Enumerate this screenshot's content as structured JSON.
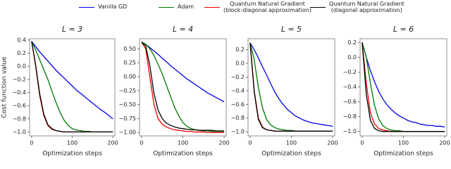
{
  "legend": [
    {
      "name": "Vanilla GD",
      "color": "#0000ee"
    },
    {
      "name": "Adam",
      "color": "#007700"
    },
    {
      "name": "Quantum Natural Gradient\n(block-diagonal approximation)",
      "color": "#ee0000"
    },
    {
      "name": "Quantum Natural Gradient\n(diagonal approximation)",
      "color": "#000000"
    }
  ],
  "chart_data": [
    {
      "type": "line",
      "title": "L = 3",
      "ylabel": "Cost function value",
      "xlabel": "Optimization steps",
      "x": [
        0,
        10,
        20,
        30,
        40,
        50,
        60,
        70,
        80,
        90,
        100,
        110,
        120,
        130,
        140,
        150,
        160,
        170,
        180,
        190,
        200
      ],
      "xlim": [
        -5,
        205
      ],
      "xticks": [
        0,
        100,
        200
      ],
      "ylim": [
        -1.06,
        0.42
      ],
      "yticks": [
        {
          "value": -1.0,
          "label": "−1.0"
        },
        {
          "value": -0.8,
          "label": "−0.8"
        },
        {
          "value": -0.6,
          "label": "−0.6"
        },
        {
          "value": -0.4,
          "label": "−0.4"
        },
        {
          "value": -0.2,
          "label": "−0.2"
        },
        {
          "value": 0.0,
          "label": "0.0"
        },
        0.2,
        0.4
      ],
      "series": [
        {
          "values": [
            0.38,
            0.3,
            0.22,
            0.15,
            0.08,
            0.01,
            -0.06,
            -0.12,
            -0.18,
            -0.24,
            -0.3,
            -0.36,
            -0.41,
            -0.46,
            -0.51,
            -0.56,
            -0.61,
            -0.66,
            -0.7,
            -0.75,
            -0.8
          ]
        },
        {
          "values": [
            0.38,
            0.25,
            0.1,
            -0.05,
            -0.2,
            -0.38,
            -0.55,
            -0.7,
            -0.82,
            -0.9,
            -0.95,
            -0.97,
            -0.98,
            -0.99,
            -0.99,
            -1.0,
            -1.0,
            -1.0,
            -1.0,
            -1.0,
            -1.0
          ]
        },
        {
          "values": [
            0.38,
            0.0,
            -0.45,
            -0.75,
            -0.9,
            -0.96,
            -0.98,
            -0.99,
            -1.0,
            -1.0,
            -1.0,
            -1.0,
            -1.0,
            -1.0,
            -1.0,
            -1.0,
            -1.0,
            -1.0,
            -1.0,
            -1.0,
            -1.0
          ]
        },
        {
          "values": [
            0.38,
            0.02,
            -0.42,
            -0.73,
            -0.89,
            -0.95,
            -0.98,
            -0.99,
            -1.0,
            -1.0,
            -1.0,
            -1.0,
            -1.0,
            -1.0,
            -1.0,
            -1.0,
            -1.0,
            -1.0,
            -1.0,
            -1.0,
            -1.0
          ]
        }
      ]
    },
    {
      "type": "line",
      "title": "L = 4",
      "xlabel": "Optimization steps",
      "x": [
        0,
        10,
        20,
        30,
        40,
        50,
        60,
        70,
        80,
        90,
        100,
        110,
        120,
        130,
        140,
        150,
        160,
        170,
        180,
        190,
        200
      ],
      "xlim": [
        -5,
        205
      ],
      "xticks": [
        0,
        100,
        200
      ],
      "ylim": [
        -1.06,
        0.68
      ],
      "yticks": [
        {
          "value": -1.0,
          "label": "−1.00"
        },
        {
          "value": -0.75,
          "label": "−0.75"
        },
        {
          "value": -0.5,
          "label": "−0.50"
        },
        {
          "value": -0.25,
          "label": "−0.25"
        },
        {
          "value": 0.0,
          "label": "0.00"
        },
        0.25,
        {
          "value": 0.5,
          "label": "0.50"
        }
      ],
      "series": [
        {
          "values": [
            0.62,
            0.58,
            0.52,
            0.46,
            0.4,
            0.33,
            0.27,
            0.2,
            0.14,
            0.08,
            0.02,
            -0.04,
            -0.09,
            -0.14,
            -0.19,
            -0.24,
            -0.29,
            -0.33,
            -0.37,
            -0.41,
            -0.45
          ]
        },
        {
          "values": [
            0.62,
            0.58,
            0.5,
            0.38,
            0.22,
            0.05,
            -0.15,
            -0.35,
            -0.55,
            -0.7,
            -0.82,
            -0.89,
            -0.93,
            -0.95,
            -0.96,
            -0.97,
            -0.97,
            -0.98,
            -0.98,
            -0.98,
            -0.98
          ]
        },
        {
          "values": [
            0.62,
            0.5,
            0.0,
            -0.5,
            -0.75,
            -0.85,
            -0.9,
            -0.93,
            -0.95,
            -0.96,
            -0.97,
            -0.98,
            -0.98,
            -0.99,
            -0.99,
            -0.99,
            -1.0,
            -1.0,
            -1.0,
            -1.0,
            -1.0
          ]
        },
        {
          "values": [
            0.62,
            0.55,
            0.2,
            -0.3,
            -0.6,
            -0.75,
            -0.83,
            -0.87,
            -0.9,
            -0.92,
            -0.93,
            -0.94,
            -0.95,
            -0.95,
            -0.96,
            -0.96,
            -0.96,
            -0.96,
            -0.97,
            -0.97,
            -0.97
          ]
        }
      ]
    },
    {
      "type": "line",
      "title": "L = 5",
      "xlabel": "Optimization steps",
      "x": [
        0,
        10,
        20,
        30,
        40,
        50,
        60,
        70,
        80,
        90,
        100,
        110,
        120,
        130,
        140,
        150,
        160,
        170,
        180,
        190,
        200
      ],
      "xlim": [
        -5,
        205
      ],
      "xticks": [
        0,
        100,
        200
      ],
      "ylim": [
        -1.06,
        0.36
      ],
      "yticks": [
        {
          "value": -1.0,
          "label": "−1.0"
        },
        {
          "value": -0.8,
          "label": "−0.8"
        },
        {
          "value": -0.6,
          "label": "−0.6"
        },
        {
          "value": -0.4,
          "label": "−0.4"
        },
        {
          "value": -0.2,
          "label": "−0.2"
        },
        {
          "value": 0.0,
          "label": "0.0"
        },
        0.2
      ],
      "series": [
        {
          "values": [
            0.3,
            0.2,
            0.08,
            -0.05,
            -0.17,
            -0.3,
            -0.42,
            -0.52,
            -0.6,
            -0.67,
            -0.72,
            -0.77,
            -0.8,
            -0.83,
            -0.85,
            -0.87,
            -0.88,
            -0.89,
            -0.9,
            -0.91,
            -0.92
          ]
        },
        {
          "values": [
            0.3,
            0.05,
            -0.35,
            -0.65,
            -0.82,
            -0.9,
            -0.94,
            -0.96,
            -0.97,
            -0.98,
            -0.98,
            -0.99,
            -0.99,
            -0.99,
            -0.99,
            -0.99,
            -0.99,
            -0.99,
            -0.99,
            -0.99,
            -0.99
          ]
        },
        {
          "values": [
            0.3,
            -0.4,
            -0.8,
            -0.93,
            -0.97,
            -0.98,
            -0.99,
            -0.99,
            -0.99,
            -0.99,
            -0.99,
            -0.99,
            -0.99,
            -0.99,
            -0.99,
            -0.99,
            -0.99,
            -0.99,
            -0.99,
            -0.99,
            -0.99
          ]
        },
        {
          "values": [
            0.3,
            -0.42,
            -0.82,
            -0.94,
            -0.97,
            -0.98,
            -0.99,
            -0.99,
            -0.99,
            -0.99,
            -0.99,
            -0.99,
            -0.99,
            -0.99,
            -0.99,
            -0.99,
            -0.99,
            -0.99,
            -0.99,
            -0.99,
            -0.99
          ]
        }
      ]
    },
    {
      "type": "line",
      "title": "L = 6",
      "xlabel": "Optimization steps",
      "x": [
        0,
        10,
        20,
        30,
        40,
        50,
        60,
        70,
        80,
        90,
        100,
        110,
        120,
        130,
        140,
        150,
        160,
        170,
        180,
        190,
        200
      ],
      "xlim": [
        -5,
        205
      ],
      "xticks": [
        0,
        100,
        200
      ],
      "ylim": [
        -1.06,
        0.25
      ],
      "yticks": [
        {
          "value": -1.0,
          "label": "−1.0"
        },
        {
          "value": -0.8,
          "label": "−0.8"
        },
        {
          "value": -0.6,
          "label": "−0.6"
        },
        {
          "value": -0.4,
          "label": "−0.4"
        },
        {
          "value": -0.2,
          "label": "−0.2"
        },
        {
          "value": 0.0,
          "label": "0.0"
        },
        0.2
      ],
      "series": [
        {
          "values": [
            0.2,
            0.0,
            -0.18,
            -0.33,
            -0.46,
            -0.56,
            -0.64,
            -0.7,
            -0.75,
            -0.79,
            -0.82,
            -0.85,
            -0.87,
            -0.88,
            -0.9,
            -0.91,
            -0.92,
            -0.92,
            -0.93,
            -0.93,
            -0.94
          ]
        },
        {
          "values": [
            0.2,
            0.0,
            -0.35,
            -0.65,
            -0.83,
            -0.92,
            -0.96,
            -0.98,
            -0.99,
            -0.99,
            -1.0,
            -1.0,
            -1.0,
            -1.0,
            -1.0,
            -1.0,
            -1.0,
            -1.0,
            -1.0,
            -1.0,
            -1.0
          ]
        },
        {
          "values": [
            0.2,
            -0.35,
            -0.75,
            -0.9,
            -0.96,
            -0.98,
            -0.99,
            -1.0,
            -1.0,
            -1.0,
            -1.0,
            -1.0,
            -1.0,
            -1.0,
            -1.0,
            -1.0,
            -1.0,
            -1.0,
            -1.0,
            -1.0,
            -1.0
          ]
        },
        {
          "values": [
            0.2,
            -0.5,
            -0.85,
            -0.96,
            -0.99,
            -1.0,
            -1.0,
            -1.0,
            -1.0,
            -1.0,
            -1.0,
            -1.0,
            -1.0,
            -1.0,
            -1.0,
            -1.0,
            -1.0,
            -1.0,
            -1.0,
            -1.0,
            -1.0
          ]
        }
      ]
    }
  ]
}
